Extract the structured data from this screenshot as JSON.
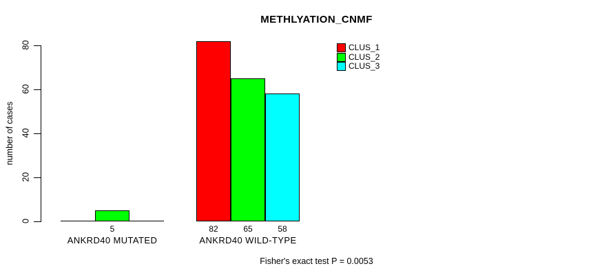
{
  "chart_data": {
    "type": "bar",
    "title": "METHLYATION_CNMF",
    "xlabel": "",
    "ylabel": "number of cases",
    "categories": [
      "ANKRD40 MUTATED",
      "ANKRD40 WILD-TYPE"
    ],
    "series": [
      {
        "name": "CLUS_1",
        "color": "#ff0000",
        "values": [
          0,
          82
        ]
      },
      {
        "name": "CLUS_2",
        "color": "#00ff00",
        "values": [
          5,
          65
        ]
      },
      {
        "name": "CLUS_3",
        "color": "#00ffff",
        "values": [
          0,
          58
        ]
      }
    ],
    "bar_value_labels": [
      [
        "",
        "5",
        ""
      ],
      [
        "82",
        "65",
        "58"
      ]
    ],
    "yticks": [
      0,
      20,
      40,
      60,
      80
    ],
    "ylim": [
      0,
      80
    ],
    "grid": false,
    "legend_position": "top-right",
    "annotation": "Fisher's exact test P = 0.0053"
  },
  "colors": {
    "background": "#ffffff",
    "axis": "#000000",
    "text": "#000000"
  }
}
